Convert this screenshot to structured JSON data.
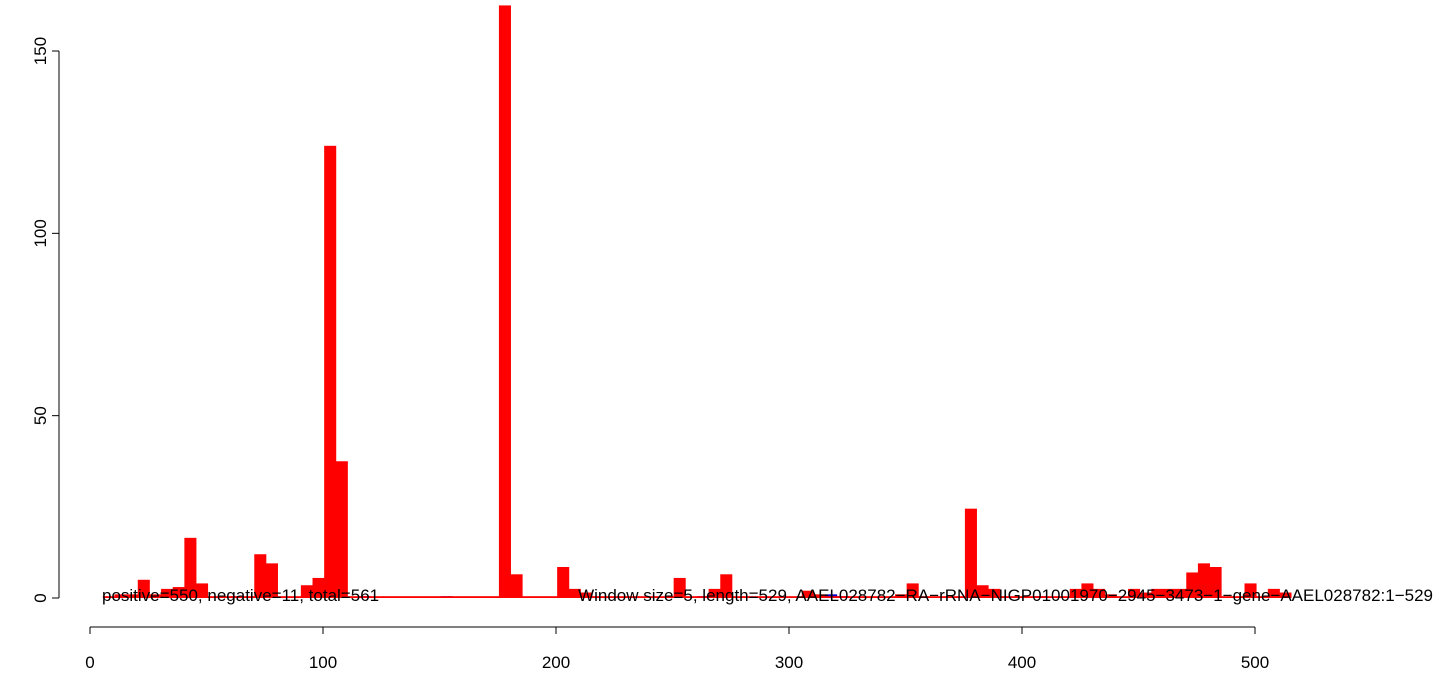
{
  "chart_data": {
    "type": "bar",
    "x_ticks": [
      "0",
      "100",
      "200",
      "300",
      "400",
      "500"
    ],
    "y_ticks": [
      "0",
      "50",
      "100",
      "150"
    ],
    "xlim": [
      0,
      500
    ],
    "ylim": [
      0,
      150
    ],
    "bar_width": 5,
    "colors": {
      "positive": "#ff0000",
      "negative": "#0000cc"
    },
    "positive": {
      "x": [
        8,
        13,
        18,
        23,
        28,
        33,
        38,
        43,
        48,
        53,
        58,
        63,
        68,
        73,
        78,
        83,
        88,
        93,
        98,
        103,
        108,
        113,
        118,
        123,
        128,
        133,
        138,
        143,
        148,
        153,
        158,
        163,
        168,
        173,
        178,
        183,
        188,
        193,
        198,
        203,
        208,
        213,
        218,
        223,
        228,
        233,
        238,
        243,
        248,
        253,
        258,
        263,
        268,
        273,
        278,
        283,
        288,
        293,
        298,
        303,
        308,
        313,
        318,
        323,
        328,
        333,
        338,
        343,
        348,
        353,
        358,
        363,
        368,
        373,
        378,
        383,
        388,
        393,
        398,
        403,
        408,
        413,
        418,
        423,
        428,
        433,
        438,
        443,
        448,
        453,
        458,
        463,
        468,
        473,
        478,
        483,
        488,
        493,
        498,
        503,
        508,
        513
      ],
      "values": [
        0.5,
        1,
        1,
        5,
        1,
        2.5,
        3,
        16.5,
        4,
        0.5,
        0.5,
        0.5,
        0.5,
        12,
        9.5,
        0.5,
        0.5,
        3.5,
        5.5,
        124,
        37.5,
        0.5,
        0.5,
        0.5,
        0.5,
        0.5,
        0.5,
        0.5,
        0.5,
        0.5,
        0.5,
        0.5,
        0.5,
        0.5,
        162.5,
        6.5,
        0.5,
        0.5,
        0.5,
        8.5,
        2.5,
        1.5,
        0.5,
        0.5,
        0.5,
        0.5,
        0.5,
        0.5,
        0.5,
        5.5,
        0.5,
        0.5,
        2.5,
        6.5,
        0.5,
        0.5,
        0.5,
        0.5,
        0.5,
        0.5,
        2,
        1,
        0.5,
        0.5,
        0.5,
        0.5,
        0.5,
        0.5,
        1,
        4,
        0.5,
        0.5,
        0.5,
        0.5,
        24.5,
        3.5,
        2.5,
        0.5,
        0.5,
        0.5,
        0.5,
        0.5,
        0.5,
        2.5,
        4,
        2.5,
        1,
        0.5,
        2.5,
        1.5,
        2.5,
        2.5,
        2.5,
        7,
        9.5,
        8.5,
        0.5,
        0.5,
        4,
        0.5,
        2.5,
        1.5
      ]
    },
    "negative": {
      "x": [
        63,
        78,
        118,
        153,
        213,
        263,
        318,
        323,
        408,
        453
      ],
      "values": [
        0.5,
        0.5,
        0.5,
        0.5,
        0.5,
        0.5,
        1,
        0.5,
        0.5,
        0.5
      ]
    },
    "annotation": "positive=550, negative=11, total=561",
    "annotation_2": "Window size=5, length=529, AAEL028782−RA−rRNA−NIGP01001970−2945−3473−1−gene−AAEL028782:1−529"
  }
}
